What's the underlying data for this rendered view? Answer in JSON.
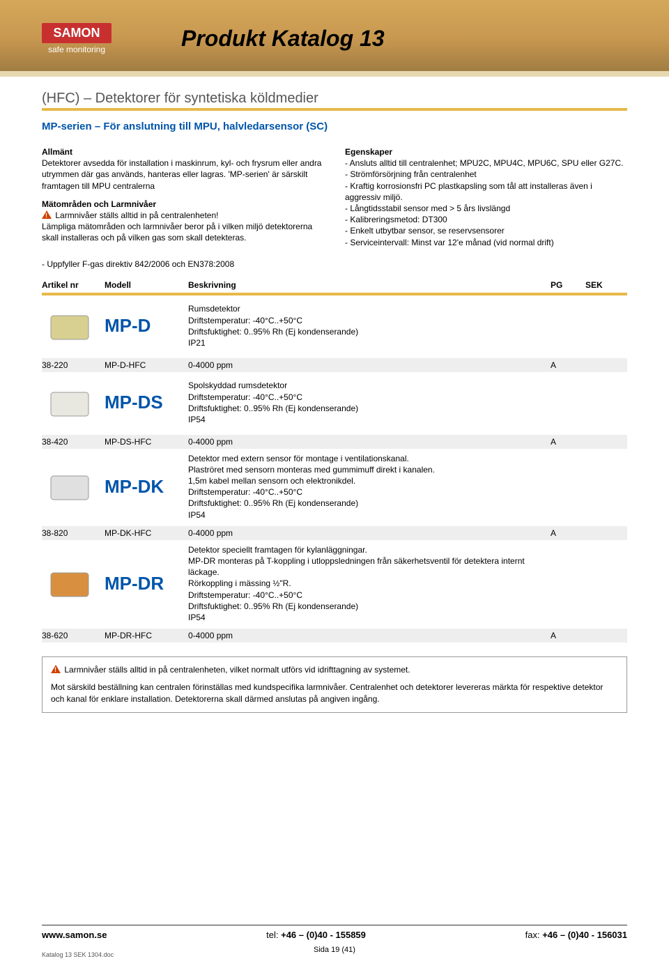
{
  "header": {
    "logo_top": "SAMON",
    "logo_bottom": "safe monitoring",
    "title": "Produkt Katalog 13"
  },
  "section_title": "(HFC) – Detektorer för syntetiska köldmedier",
  "subtitle": "MP-serien – För anslutning till MPU, halvledarsensor (SC)",
  "left_col": {
    "head1": "Allmänt",
    "body1": "Detektorer avsedda för installation i maskinrum, kyl- och frysrum eller andra utrymmen där gas används, hanteras eller lagras. 'MP-serien' är särskilt framtagen till MPU centralerna",
    "head2": "Mätområden och Larmnivåer",
    "warn": "Larmnivåer ställs alltid in på centralenheten!",
    "body2": "Lämpliga mätområden och larmnivåer beror på i vilken miljö detektorerna skall installeras och på vilken gas som skall detekteras."
  },
  "right_col": {
    "head": "Egenskaper",
    "lines": [
      "- Ansluts alltid till centralenhet; MPU2C, MPU4C, MPU6C, SPU eller G27C.",
      "- Strömförsörjning från centralenhet",
      "- Kraftig korrosionsfri PC plastkapsling som tål att installeras även i aggressiv miljö.",
      "- Långtidsstabil sensor med > 5 års livslängd",
      "- Kalibreringsmetod: DT300",
      "- Enkelt utbytbar sensor, se reservsensorer",
      "- Serviceintervall: Minst var 12'e månad (vid normal drift)"
    ]
  },
  "directive": "- Uppfyller F-gas direktiv 842/2006 och EN378:2008",
  "table": {
    "headers": {
      "artnr": "Artikel nr",
      "model": "Modell",
      "desc": "Beskrivning",
      "pg": "PG",
      "sek": "SEK"
    },
    "groups": [
      {
        "model_label": "MP-D",
        "desc": "Rumsdetektor\nDriftstemperatur: -40°C..+50°C\nDriftsfuktighet: 0..95% Rh (Ej kondenserande)\nIP21",
        "img_color": "#d8d090",
        "row": {
          "artnr": "38-220",
          "model": "MP-D-HFC",
          "desc": "0-4000 ppm",
          "pg": "A",
          "sek": ""
        }
      },
      {
        "model_label": "MP-DS",
        "desc": "Spolskyddad rumsdetektor\nDriftstemperatur: -40°C..+50°C\nDriftsfuktighet: 0..95% Rh (Ej kondenserande)\nIP54",
        "img_color": "#e8e8e0",
        "row": {
          "artnr": "38-420",
          "model": "MP-DS-HFC",
          "desc": "0-4000 ppm",
          "pg": "A",
          "sek": ""
        }
      },
      {
        "model_label": "MP-DK",
        "desc": "Detektor med extern sensor för montage i ventilationskanal.\nPlaströret med sensorn monteras med gummimuff direkt i kanalen.\n1,5m kabel mellan sensorn och elektronikdel.\nDriftstemperatur: -40°C..+50°C\nDriftsfuktighet: 0..95% Rh (Ej kondenserande)\nIP54",
        "img_color": "#e0e0e0",
        "row": {
          "artnr": "38-820",
          "model": "MP-DK-HFC",
          "desc": "0-4000 ppm",
          "pg": "A",
          "sek": ""
        }
      },
      {
        "model_label": "MP-DR",
        "desc": "Detektor speciellt framtagen för kylanläggningar.\nMP-DR monteras på T-koppling i utloppsledningen från säkerhetsventil för detektera internt läckage.\nRörkoppling i mässing ½\"R.\nDriftstemperatur: -40°C..+50°C\nDriftsfuktighet: 0..95% Rh (Ej kondenserande)\nIP54",
        "img_color": "#d89040",
        "row": {
          "artnr": "38-620",
          "model": "MP-DR-HFC",
          "desc": "0-4000 ppm",
          "pg": "A",
          "sek": ""
        }
      }
    ]
  },
  "note": {
    "warn": "Larmnivåer ställs alltid in på centralenheten, vilket normalt utförs vid idrifttagning av systemet.",
    "body": "Mot särskild beställning kan centralen förinställas med kundspecifika larmnivåer. Centralenhet och detektorer levereras märkta för respektive detektor och kanal för enklare installation. Detektorerna skall därmed anslutas på angiven ingång."
  },
  "footer": {
    "web": "www.samon.se",
    "tel_label": "tel:",
    "tel": "+46 – (0)40 - 155859",
    "fax_label": "fax:",
    "fax": "+46 – (0)40 - 156031",
    "page": "Sida 19 (41)",
    "doc": "Katalog 13 SEK 1304.doc"
  }
}
